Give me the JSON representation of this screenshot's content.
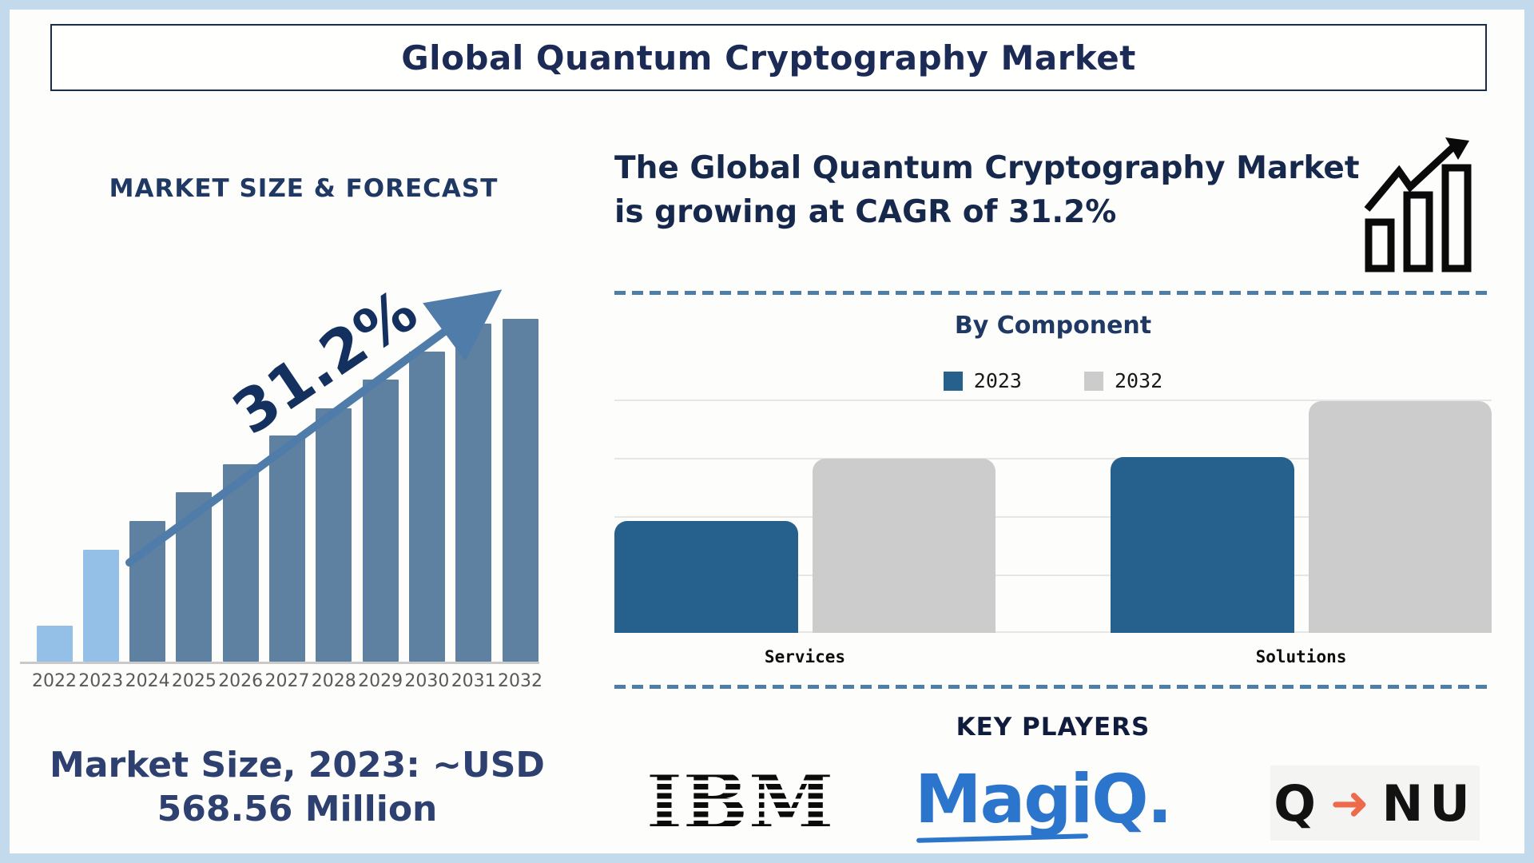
{
  "page": {
    "title": "Global Quantum Cryptography Market"
  },
  "left_panel": {
    "chart_title": "MARKET SIZE & FORECAST",
    "growth_label": "31.2%",
    "note": "Market Size, 2023: ~USD 568.56 Million"
  },
  "right_panel": {
    "headline": "The Global Quantum Cryptography Market is growing at CAGR of 31.2%",
    "component_section_title": "By Component",
    "key_players_title": "KEY PLAYERS",
    "players": {
      "ibm": "IBM",
      "magiq": "MagiQ",
      "magiq_dot": ".",
      "qnu_q": "Q",
      "qnu_arrow": "➜",
      "qnu_nu": "NU"
    }
  },
  "chart_data": [
    {
      "id": "market-size-forecast",
      "type": "bar",
      "title": "MARKET SIZE & FORECAST",
      "categories": [
        "2022",
        "2023",
        "2024",
        "2025",
        "2026",
        "2027",
        "2028",
        "2029",
        "2030",
        "2031",
        "2032"
      ],
      "values_relative_pct": [
        10.5,
        32.6,
        41,
        49.4,
        57.6,
        66,
        73.9,
        82.3,
        90.4,
        98.6,
        100
      ],
      "annotation": "31.2%",
      "note": "Market Size, 2023: ~USD 568.56 Million",
      "highlight_categories": [
        "2022",
        "2023"
      ],
      "colors": {
        "highlight": "#94c0e8",
        "default": "#5f81a1",
        "arrow": "#4f7ca8"
      },
      "xlabel": "",
      "ylabel": "",
      "axis_note": "no y-axis shown; bar heights relative to 2032 = 100"
    },
    {
      "id": "by-component",
      "type": "bar",
      "title": "By Component",
      "categories": [
        "Services",
        "Solutions"
      ],
      "series": [
        {
          "name": "2023",
          "color": "#26618e",
          "values_relative_pct": [
            48.3,
            75.9
          ]
        },
        {
          "name": "2032",
          "color": "#cccccc",
          "values_relative_pct": [
            75.2,
            100
          ]
        }
      ],
      "legend_position": "top",
      "grid": true,
      "xlabel": "",
      "ylabel": "",
      "axis_note": "no y-axis shown; bar heights relative to Solutions 2032 = 100"
    }
  ]
}
